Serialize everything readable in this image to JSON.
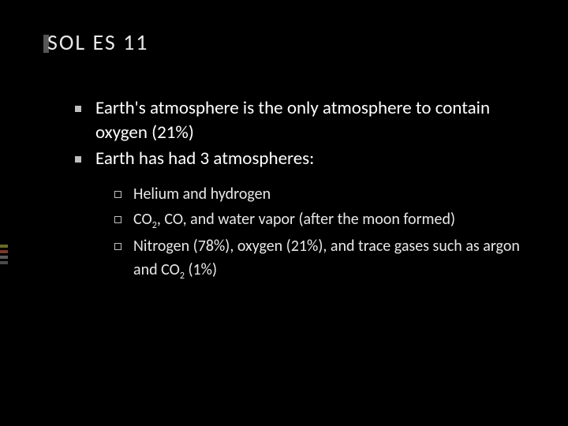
{
  "slide": {
    "title": "SOL  ES  11",
    "background_color": "#000000",
    "title_color": "#e8e8e8",
    "text_color": "#ffffff",
    "title_fontsize": 28,
    "body_fontsize": 23,
    "sub_fontsize": 20,
    "bullet_fill": "#c0c0c0",
    "bullets": [
      {
        "text": "Earth's atmosphere is the only atmosphere to contain oxygen (21%)"
      },
      {
        "text": "Earth has had 3 atmospheres:"
      }
    ],
    "sub_bullets": [
      {
        "text": "Helium and hydrogen"
      },
      {
        "text_html": "CO<sub>2</sub>, CO, and water vapor (after the moon formed)",
        "text": "CO2, CO, and water vapor (after the moon formed)"
      },
      {
        "text_html": "Nitrogen (78%), oxygen (21%), and trace gases such as argon and CO<sub>2</sub> (1%)",
        "text": "Nitrogen (78%), oxygen (21%), and trace gases such as argon and CO2 (1%)"
      }
    ],
    "accent_bar_color": "#555555",
    "side_tick_colors": [
      "#6a6a2a",
      "#7a3a2a",
      "#5a5a5a",
      "#4a4a4a"
    ]
  }
}
